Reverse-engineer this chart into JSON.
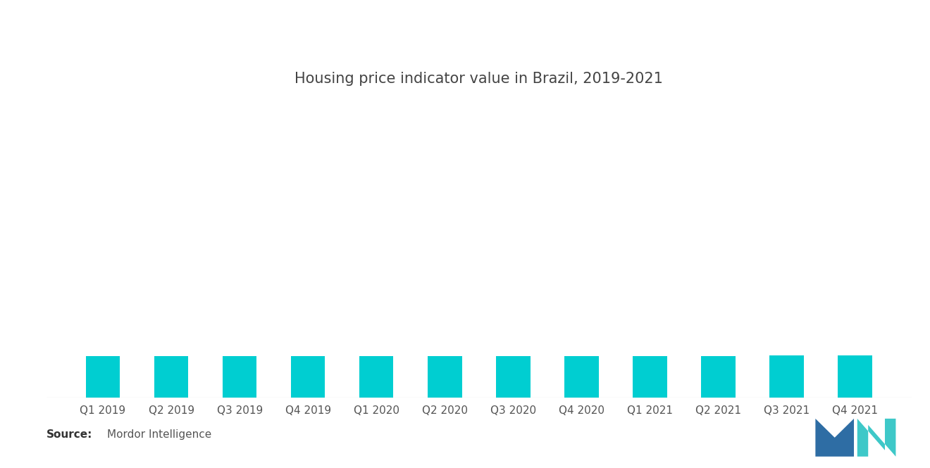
{
  "title": "Housing price indicator value in Brazil, 2019-2021",
  "categories": [
    "Q1 2019",
    "Q2 2019",
    "Q3 2019",
    "Q4 2019",
    "Q1 2020",
    "Q2 2020",
    "Q3 2020",
    "Q4 2020",
    "Q1 2021",
    "Q2 2021",
    "Q3 2021",
    "Q4 2021"
  ],
  "values": [
    100.0,
    100.5,
    100.3,
    100.7,
    100.4,
    101.0,
    100.6,
    101.2,
    101.0,
    101.3,
    101.5,
    101.6
  ],
  "bar_color": "#00CED1",
  "background_color": "#FFFFFF",
  "title_fontsize": 15,
  "tick_fontsize": 11,
  "source_bold": "Source:",
  "source_normal": "Mordor Intelligence",
  "bar_width": 0.5,
  "ylim_min": 0,
  "ylim_max": 700,
  "logo_m_color": "#2E6DA4",
  "logo_n_color": "#3EC8C8"
}
